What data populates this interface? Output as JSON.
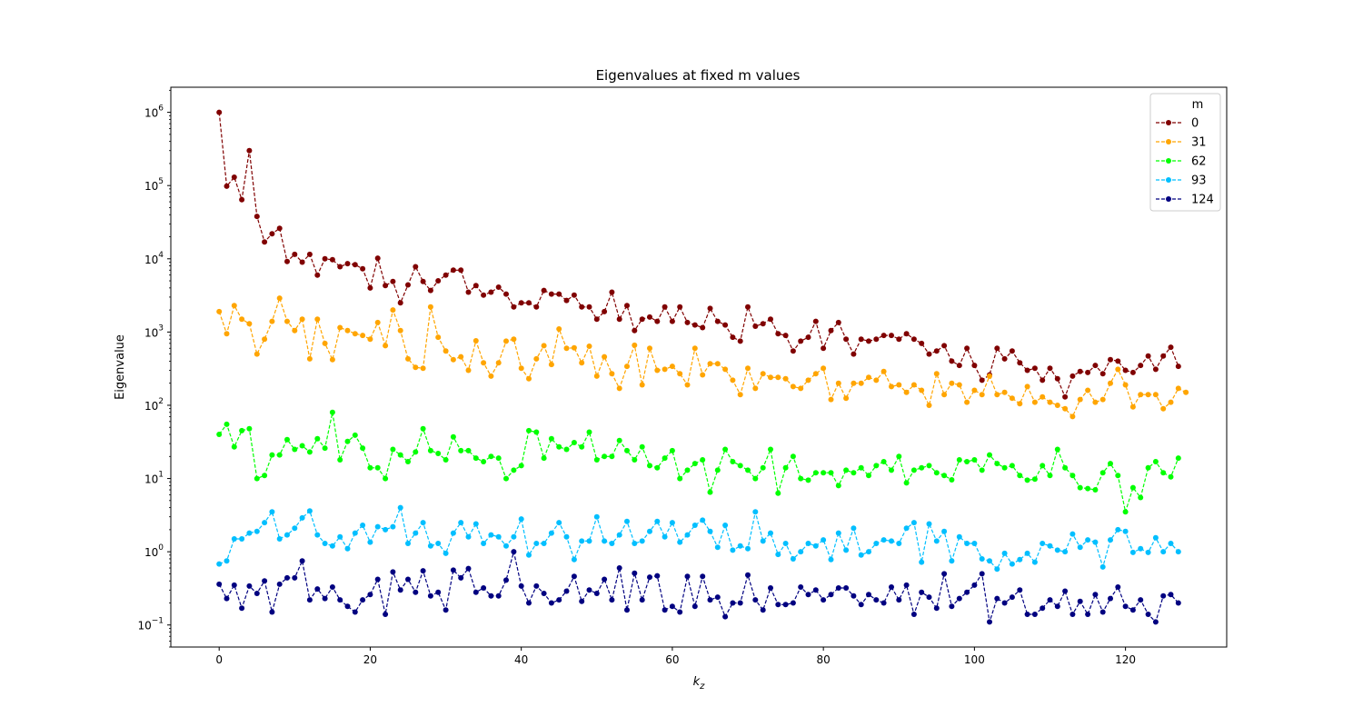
{
  "chart_data": {
    "type": "line",
    "title": "Eigenvalues at fixed m values",
    "xlabel": "k",
    "xlabel_subscript": "z",
    "ylabel": "Eigenvalue",
    "yscale": "log",
    "xlim": [
      -6.4,
      133.4
    ],
    "ylim": [
      0.05,
      2200000
    ],
    "x_ticks": [
      0,
      20,
      40,
      60,
      80,
      100,
      120
    ],
    "y_ticks": [
      {
        "value": 0.1,
        "mant": "10",
        "exp": "−1"
      },
      {
        "value": 1,
        "mant": "10",
        "exp": "0"
      },
      {
        "value": 10,
        "mant": "10",
        "exp": "1"
      },
      {
        "value": 100,
        "mant": "10",
        "exp": "2"
      },
      {
        "value": 1000,
        "mant": "10",
        "exp": "3"
      },
      {
        "value": 10000,
        "mant": "10",
        "exp": "4"
      },
      {
        "value": 100000,
        "mant": "10",
        "exp": "5"
      },
      {
        "value": 1000000,
        "mant": "10",
        "exp": "6"
      }
    ],
    "grid": false,
    "legend": {
      "title": "m",
      "position": "top-right"
    },
    "line_style": "dashed",
    "marker": "circle",
    "x_start": 0,
    "series": [
      {
        "name": "0",
        "color": "#800000",
        "values": [
          1000000,
          98000,
          130000,
          64000,
          300000,
          38000,
          17000,
          22000,
          26000,
          9200,
          11500,
          9000,
          11500,
          6000,
          10000,
          9700,
          7800,
          8600,
          8300,
          7300,
          4000,
          10200,
          4300,
          4900,
          2500,
          4400,
          7800,
          4900,
          3700,
          5000,
          6000,
          7000,
          7000,
          3500,
          4300,
          3200,
          3500,
          4100,
          3300,
          2200,
          2500,
          2500,
          2200,
          3700,
          3300,
          3300,
          2700,
          3200,
          2200,
          2200,
          1500,
          1900,
          3500,
          1500,
          2300,
          1050,
          1500,
          1600,
          1400,
          2200,
          1400,
          2200,
          1350,
          1250,
          1150,
          2100,
          1400,
          1250,
          850,
          750,
          2200,
          1200,
          1300,
          1500,
          950,
          900,
          550,
          750,
          850,
          1400,
          600,
          1050,
          1350,
          800,
          500,
          800,
          750,
          800,
          900,
          900,
          800,
          950,
          800,
          700,
          500,
          550,
          650,
          400,
          350,
          600,
          350,
          220,
          260,
          600,
          430,
          550,
          380,
          300,
          320,
          220,
          320,
          230,
          130,
          250,
          290,
          280,
          350,
          270,
          420,
          400,
          300,
          280,
          350,
          470,
          310,
          470,
          620,
          340
        ]
      },
      {
        "name": "31",
        "color": "#ffa500",
        "values": [
          1900,
          950,
          2300,
          1500,
          1300,
          500,
          800,
          1400,
          2900,
          1400,
          1050,
          1500,
          430,
          1500,
          700,
          420,
          1150,
          1050,
          950,
          900,
          800,
          1350,
          650,
          2000,
          1050,
          430,
          330,
          320,
          2200,
          850,
          550,
          420,
          460,
          300,
          760,
          380,
          250,
          380,
          750,
          800,
          320,
          230,
          430,
          650,
          360,
          1100,
          600,
          610,
          380,
          640,
          250,
          460,
          270,
          170,
          340,
          660,
          190,
          600,
          300,
          310,
          340,
          270,
          190,
          600,
          260,
          370,
          370,
          310,
          220,
          140,
          320,
          170,
          270,
          240,
          240,
          230,
          180,
          170,
          220,
          270,
          320,
          120,
          200,
          125,
          200,
          200,
          240,
          220,
          290,
          180,
          190,
          150,
          190,
          160,
          100,
          270,
          140,
          200,
          190,
          110,
          160,
          140,
          250,
          140,
          150,
          125,
          105,
          180,
          110,
          130,
          110,
          100,
          90,
          70,
          120,
          160,
          110,
          120,
          200,
          310,
          190,
          95,
          140,
          140,
          140,
          90,
          110,
          170,
          150
        ]
      },
      {
        "name": "62",
        "color": "#00ff00",
        "values": [
          40,
          55,
          27,
          45,
          48,
          10,
          11,
          21,
          21,
          34,
          25,
          28,
          23,
          35,
          26,
          80,
          18,
          32,
          39,
          26,
          14,
          14,
          10,
          25,
          21,
          17,
          23,
          48,
          24,
          22,
          18,
          37,
          24,
          24,
          19,
          17,
          20,
          19,
          10,
          13,
          15,
          45,
          43,
          19,
          35,
          27,
          25,
          31,
          27,
          43,
          18,
          20,
          20,
          33,
          24,
          18,
          27,
          15,
          14,
          19,
          24,
          10,
          13,
          16,
          18,
          6.5,
          13,
          25,
          17,
          15,
          13,
          10,
          14,
          25,
          6.3,
          14,
          20,
          10,
          9.5,
          12,
          12,
          12,
          8,
          13,
          12,
          14,
          11,
          15,
          17,
          13,
          20,
          8.7,
          13,
          14,
          15,
          12,
          11,
          9.6,
          18,
          17,
          18,
          13,
          21,
          16,
          14,
          15,
          11,
          9.5,
          9.8,
          15,
          11,
          25,
          14,
          11,
          7.5,
          7.3,
          7,
          12,
          16,
          11,
          3.5,
          7.5,
          5.5,
          14,
          17,
          12,
          10.5,
          19
        ]
      },
      {
        "name": "93",
        "color": "#00bfff",
        "values": [
          0.68,
          0.75,
          1.5,
          1.5,
          1.8,
          1.9,
          2.5,
          3.5,
          1.5,
          1.7,
          2.1,
          2.9,
          3.6,
          1.7,
          1.3,
          1.2,
          1.6,
          1.1,
          1.8,
          2.3,
          1.35,
          2.2,
          2,
          2.2,
          4,
          1.3,
          1.8,
          2.5,
          1.2,
          1.3,
          0.95,
          1.8,
          2.5,
          1.6,
          2.4,
          1.3,
          1.7,
          1.6,
          1.2,
          1.6,
          2.8,
          0.9,
          1.3,
          1.3,
          1.8,
          2.5,
          1.6,
          0.78,
          1.4,
          1.4,
          3,
          1.4,
          1.3,
          1.7,
          2.6,
          1.3,
          1.4,
          1.9,
          2.6,
          1.6,
          2.5,
          1.35,
          1.7,
          2.3,
          2.7,
          1.9,
          1.15,
          2.3,
          1.05,
          1.2,
          1.1,
          3.5,
          1.4,
          1.8,
          0.92,
          1.3,
          0.8,
          1,
          1.3,
          1.2,
          1.45,
          0.78,
          1.8,
          1.05,
          2.1,
          0.9,
          1,
          1.3,
          1.45,
          1.4,
          1.3,
          2.1,
          2.5,
          0.72,
          2.4,
          1.4,
          1.9,
          0.75,
          1.6,
          1.3,
          1.3,
          0.8,
          0.75,
          0.58,
          0.95,
          0.68,
          0.78,
          0.95,
          0.72,
          1.3,
          1.2,
          1.05,
          1,
          1.75,
          1.15,
          1.45,
          1.35,
          0.62,
          1.45,
          2,
          1.9,
          0.98,
          1.1,
          0.98,
          1.55,
          1,
          1.3,
          1
        ]
      },
      {
        "name": "124",
        "color": "#000080",
        "values": [
          0.36,
          0.23,
          0.35,
          0.17,
          0.34,
          0.27,
          0.4,
          0.15,
          0.36,
          0.44,
          0.44,
          0.75,
          0.22,
          0.31,
          0.23,
          0.33,
          0.22,
          0.18,
          0.15,
          0.22,
          0.26,
          0.42,
          0.14,
          0.53,
          0.3,
          0.42,
          0.28,
          0.55,
          0.25,
          0.28,
          0.16,
          0.56,
          0.44,
          0.59,
          0.28,
          0.32,
          0.25,
          0.25,
          0.41,
          1,
          0.34,
          0.2,
          0.34,
          0.27,
          0.2,
          0.22,
          0.29,
          0.46,
          0.21,
          0.3,
          0.27,
          0.42,
          0.22,
          0.6,
          0.16,
          0.51,
          0.22,
          0.45,
          0.47,
          0.16,
          0.18,
          0.15,
          0.46,
          0.18,
          0.46,
          0.22,
          0.24,
          0.13,
          0.2,
          0.2,
          0.48,
          0.22,
          0.16,
          0.32,
          0.19,
          0.19,
          0.2,
          0.33,
          0.26,
          0.3,
          0.22,
          0.26,
          0.32,
          0.32,
          0.25,
          0.19,
          0.26,
          0.22,
          0.2,
          0.33,
          0.22,
          0.35,
          0.14,
          0.28,
          0.24,
          0.17,
          0.5,
          0.18,
          0.23,
          0.28,
          0.35,
          0.5,
          0.11,
          0.23,
          0.2,
          0.24,
          0.3,
          0.14,
          0.14,
          0.17,
          0.22,
          0.18,
          0.29,
          0.14,
          0.21,
          0.14,
          0.26,
          0.15,
          0.23,
          0.33,
          0.18,
          0.16,
          0.22,
          0.14,
          0.11,
          0.25,
          0.26,
          0.2
        ]
      }
    ]
  }
}
